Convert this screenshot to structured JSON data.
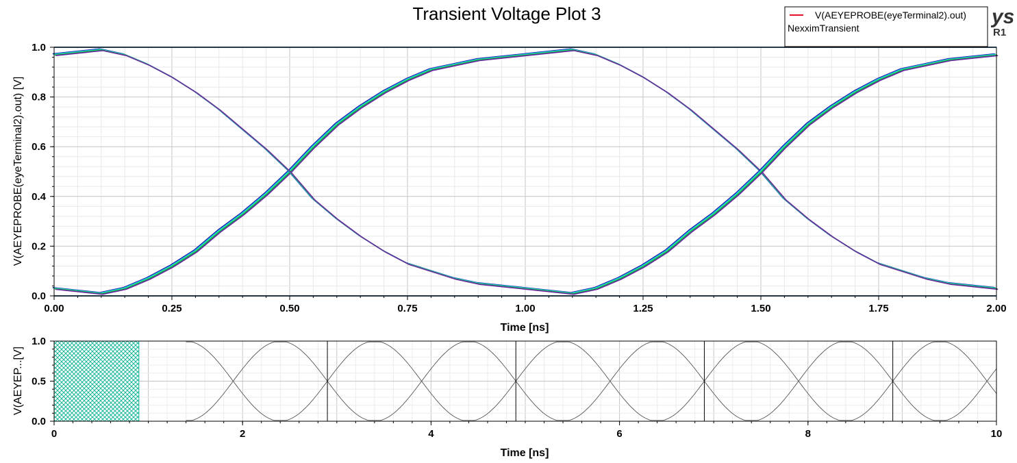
{
  "chart_data": [
    {
      "type": "line",
      "subtype": "eye-diagram",
      "title": "Transient Voltage Plot 3",
      "xlabel": "Time [ns]",
      "ylabel": "V(AEYEPROBE(eyeTerminal2).out) [V]",
      "xlim": [
        0,
        2
      ],
      "ylim": [
        0,
        1
      ],
      "xticks": [
        "0.00",
        "0.25",
        "0.50",
        "0.75",
        "1.00",
        "1.25",
        "1.50",
        "1.75",
        "2.00"
      ],
      "yticks": [
        "0.0",
        "0.2",
        "0.4",
        "0.6",
        "0.8",
        "1.0"
      ],
      "grid": true,
      "legend": {
        "placement": "top-right",
        "entries": [
          {
            "name": "V(AEYEPROBE(eyeTerminal2).out)",
            "color": "#e8102a"
          }
        ],
        "subtitle": "NexximTransient"
      },
      "trace_colors": [
        "#1a1aa8",
        "#1fb7ee",
        "#2ee87a",
        "#0da04a",
        "#6a2aa0"
      ],
      "series": [
        {
          "role": "rising",
          "x": [
            0.0,
            0.05,
            0.1,
            0.15,
            0.2,
            0.25,
            0.3,
            0.35,
            0.4,
            0.45,
            0.5,
            0.55,
            0.6,
            0.65,
            0.7,
            0.75,
            0.8,
            0.85,
            0.9,
            0.95,
            1.0,
            1.05,
            1.1,
            1.15,
            1.2,
            1.25,
            1.3,
            1.35,
            1.4,
            1.45,
            1.5,
            1.55,
            1.6,
            1.65,
            1.7,
            1.75,
            1.8,
            1.85,
            1.9,
            1.95,
            2.0
          ],
          "y": [
            0.03,
            0.02,
            0.01,
            0.03,
            0.07,
            0.12,
            0.18,
            0.26,
            0.33,
            0.41,
            0.5,
            0.6,
            0.69,
            0.76,
            0.82,
            0.87,
            0.91,
            0.93,
            0.95,
            0.96,
            0.97,
            0.98,
            0.99,
            0.97,
            0.93,
            0.88,
            0.82,
            0.75,
            0.67,
            0.59,
            0.5,
            0.39,
            0.31,
            0.24,
            0.18,
            0.13,
            0.1,
            0.07,
            0.05,
            0.04,
            0.03
          ]
        },
        {
          "role": "falling",
          "x": [
            0.0,
            0.05,
            0.1,
            0.15,
            0.2,
            0.25,
            0.3,
            0.35,
            0.4,
            0.45,
            0.5,
            0.55,
            0.6,
            0.65,
            0.7,
            0.75,
            0.8,
            0.85,
            0.9,
            0.95,
            1.0,
            1.05,
            1.1,
            1.15,
            1.2,
            1.25,
            1.3,
            1.35,
            1.4,
            1.45,
            1.5,
            1.55,
            1.6,
            1.65,
            1.7,
            1.75,
            1.8,
            1.85,
            1.9,
            1.95,
            2.0
          ],
          "y": [
            0.97,
            0.98,
            0.99,
            0.97,
            0.93,
            0.88,
            0.82,
            0.75,
            0.67,
            0.59,
            0.5,
            0.39,
            0.31,
            0.24,
            0.18,
            0.13,
            0.1,
            0.07,
            0.05,
            0.04,
            0.03,
            0.02,
            0.01,
            0.03,
            0.07,
            0.12,
            0.18,
            0.26,
            0.33,
            0.41,
            0.5,
            0.6,
            0.69,
            0.76,
            0.82,
            0.87,
            0.91,
            0.93,
            0.95,
            0.96,
            0.97
          ]
        },
        {
          "role": "high-rail",
          "x": [
            0.0,
            2.0
          ],
          "y": [
            1.0,
            1.0
          ]
        },
        {
          "role": "low-rail",
          "x": [
            0.0,
            2.0
          ],
          "y": [
            0.0,
            0.0
          ]
        }
      ]
    },
    {
      "type": "line",
      "subtype": "waveform-overview",
      "xlabel": "Time [ns]",
      "ylabel": "V(AEYEP...[V]",
      "xlim": [
        0,
        10
      ],
      "ylim": [
        0,
        1
      ],
      "xticks": [
        "0",
        "2",
        "4",
        "6",
        "8",
        "10"
      ],
      "yticks": [
        "0.0",
        "0.5",
        "1.0"
      ],
      "grid": true,
      "highlight_window": [
        0,
        0.9
      ],
      "markers": [
        2.9,
        4.9,
        6.9,
        8.9
      ],
      "signal_start": 1.4,
      "unit_interval": 1.0
    }
  ]
}
